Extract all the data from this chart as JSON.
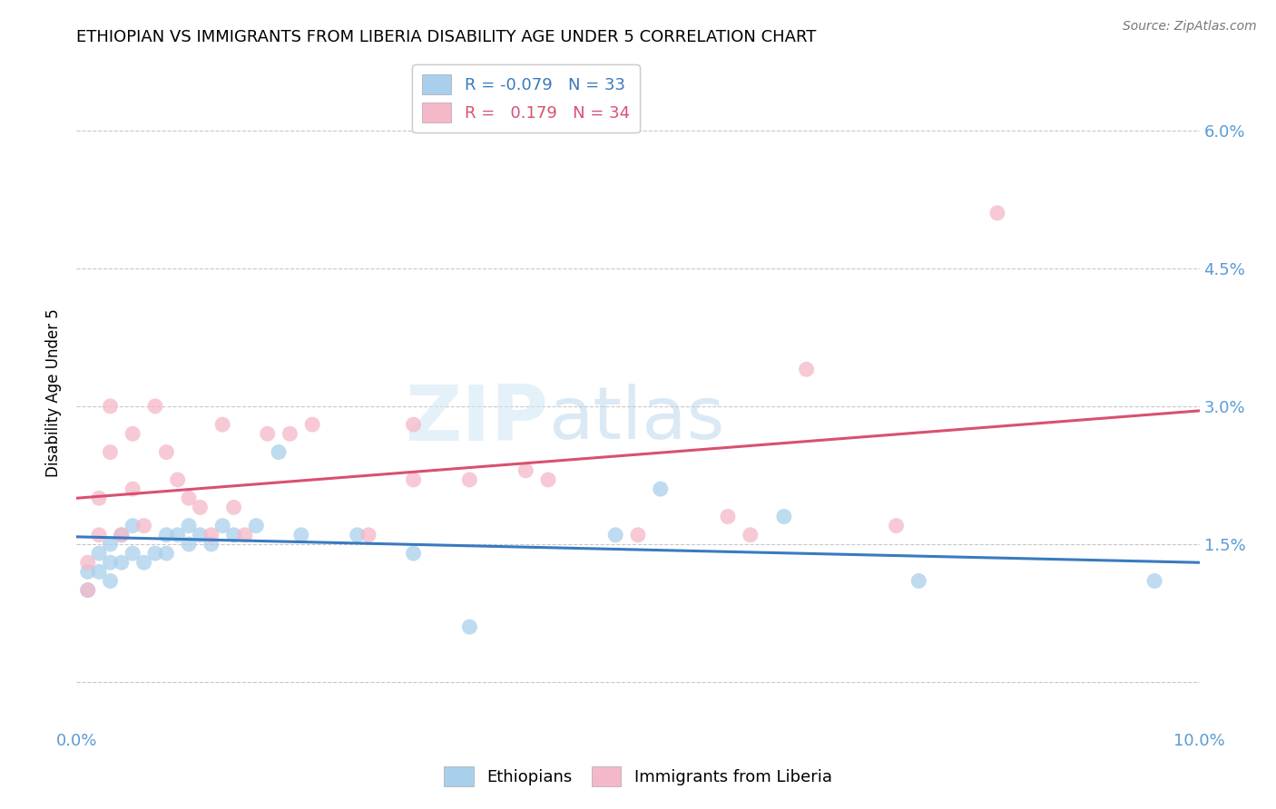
{
  "title": "ETHIOPIAN VS IMMIGRANTS FROM LIBERIA DISABILITY AGE UNDER 5 CORRELATION CHART",
  "source": "Source: ZipAtlas.com",
  "ylabel": "Disability Age Under 5",
  "xmin": 0.0,
  "xmax": 0.1,
  "ymin": -0.005,
  "ymax": 0.068,
  "ytick_vals": [
    0.0,
    0.015,
    0.03,
    0.045,
    0.06
  ],
  "ytick_labels": [
    "",
    "1.5%",
    "3.0%",
    "4.5%",
    "6.0%"
  ],
  "color_ethiopian": "#a8d0ec",
  "color_liberia": "#f5b8c8",
  "color_line_ethiopian": "#3a7abf",
  "color_line_liberia": "#d95070",
  "color_ticks": "#5b9bd5",
  "watermark_zip": "ZIP",
  "watermark_atlas": "atlas",
  "eth_x": [
    0.001,
    0.001,
    0.002,
    0.002,
    0.003,
    0.003,
    0.003,
    0.004,
    0.004,
    0.005,
    0.005,
    0.006,
    0.007,
    0.008,
    0.008,
    0.009,
    0.01,
    0.01,
    0.011,
    0.012,
    0.013,
    0.014,
    0.016,
    0.018,
    0.02,
    0.025,
    0.03,
    0.035,
    0.048,
    0.052,
    0.063,
    0.075,
    0.096
  ],
  "eth_y": [
    0.01,
    0.012,
    0.012,
    0.014,
    0.011,
    0.013,
    0.015,
    0.013,
    0.016,
    0.014,
    0.017,
    0.013,
    0.014,
    0.016,
    0.014,
    0.016,
    0.015,
    0.017,
    0.016,
    0.015,
    0.017,
    0.016,
    0.017,
    0.025,
    0.016,
    0.016,
    0.014,
    0.006,
    0.016,
    0.021,
    0.018,
    0.011,
    0.011
  ],
  "lib_x": [
    0.001,
    0.001,
    0.002,
    0.002,
    0.003,
    0.003,
    0.004,
    0.005,
    0.005,
    0.006,
    0.007,
    0.008,
    0.009,
    0.01,
    0.011,
    0.012,
    0.013,
    0.014,
    0.015,
    0.017,
    0.019,
    0.021,
    0.026,
    0.03,
    0.03,
    0.035,
    0.04,
    0.042,
    0.05,
    0.058,
    0.06,
    0.065,
    0.073,
    0.082
  ],
  "lib_y": [
    0.01,
    0.013,
    0.016,
    0.02,
    0.025,
    0.03,
    0.016,
    0.021,
    0.027,
    0.017,
    0.03,
    0.025,
    0.022,
    0.02,
    0.019,
    0.016,
    0.028,
    0.019,
    0.016,
    0.027,
    0.027,
    0.028,
    0.016,
    0.022,
    0.028,
    0.022,
    0.023,
    0.022,
    0.016,
    0.018,
    0.016,
    0.034,
    0.017,
    0.051
  ],
  "eth_line_x": [
    0.0,
    0.1
  ],
  "eth_line_y": [
    0.0158,
    0.013
  ],
  "lib_line_x": [
    0.0,
    0.1
  ],
  "lib_line_y": [
    0.02,
    0.0295
  ]
}
